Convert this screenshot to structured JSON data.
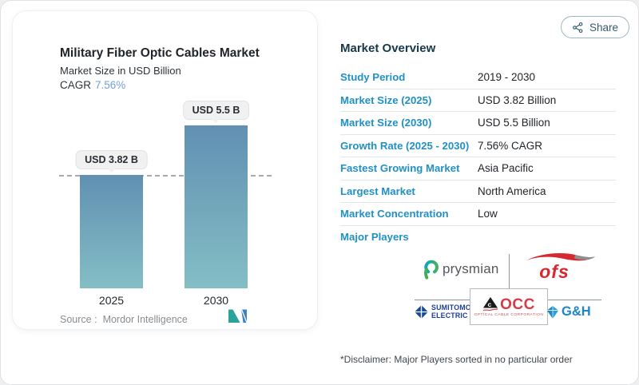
{
  "page": {
    "share_label": "Share"
  },
  "chart": {
    "title": "Military Fiber Optic Cables Market",
    "subtitle": "Market Size in USD Billion",
    "cagr_label": "CAGR",
    "cagr_value": "7.56%",
    "source_label": "Source :",
    "source_value": "Mordor Intelligence"
  },
  "chart_data": {
    "type": "bar",
    "categories": [
      "2025",
      "2030"
    ],
    "values": [
      3.82,
      5.5
    ],
    "bar_labels": [
      "USD 3.82 B",
      "USD 5.5 B"
    ],
    "title": "Military Fiber Optic Cables Market",
    "ylabel": "Market Size in USD Billion",
    "cagr": "7.56%",
    "dashed_reference_value": 3.82,
    "bar_color_top": "#6190b2",
    "bar_color_bottom": "#84bec5",
    "grid": false,
    "legend": false
  },
  "overview": {
    "heading": "Market Overview",
    "rows": [
      {
        "label": "Study Period",
        "value": "2019 - 2030"
      },
      {
        "label": "Market Size (2025)",
        "value": "USD 3.82 Billion"
      },
      {
        "label": "Market Size (2030)",
        "value": "USD 5.5 Billion"
      },
      {
        "label": "Growth Rate (2025 - 2030)",
        "value": "7.56% CAGR"
      },
      {
        "label": "Fastest Growing Market",
        "value": "Asia Pacific"
      },
      {
        "label": "Largest Market",
        "value": "North America"
      },
      {
        "label": "Market Concentration",
        "value": "Low"
      }
    ],
    "major_players_label": "Major Players",
    "major_players": [
      "Prysmian",
      "OFS",
      "Sumitomo Electric",
      "OCC (Optical Cable Corporation)",
      "G&H"
    ]
  },
  "logos": {
    "prysmian_text": "prysmian",
    "ofs_text": "ofs",
    "sumitomo_line1": "SUMITOMO",
    "sumitomo_line2": "ELECTRIC",
    "occ_text": "OCC",
    "occ_caption": "OPTICAL CABLE CORPORATION",
    "gh_text": "G&H"
  },
  "disclaimer": "*Disclaimer: Major Players sorted in no particular order",
  "colors": {
    "accent_blue": "#2090c5",
    "cagr_blue": "#72a0d8",
    "ofs_red": "#d7282f",
    "occ_red": "#d63c47",
    "sumitomo_blue": "#1b3f94",
    "gh_blue": "#1c86c8",
    "mordor_teal": "#2ba39b",
    "mordor_blue": "#3c82c4"
  }
}
